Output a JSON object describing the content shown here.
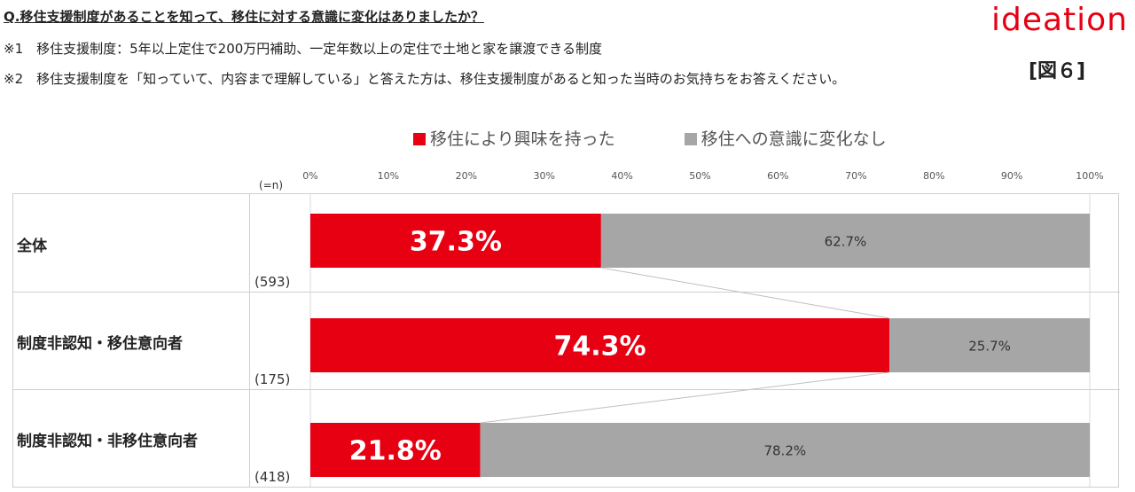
{
  "header": {
    "question": "Q.移住支援制度があることを知って、移住に対する意識に変化はありましたか？",
    "note1": "※1　移住支援制度：5年以上定住で200万円補助、一定年数以上の定住で土地と家を譲渡できる制度",
    "note2": "※2　移住支援制度を「知っていて、内容まで理解している」と答えた方は、移住支援制度があると知った当時のお気持ちをお答えください。",
    "logo": "ideation",
    "figure_label": "[図６]"
  },
  "colors": {
    "interested": "#e60012",
    "no_change": "#a6a6a6",
    "grid": "#d9d9d9",
    "connector": "#bfbfbf"
  },
  "chart_data": {
    "type": "bar",
    "orientation": "horizontal",
    "stacked": true,
    "percent_axis": true,
    "n_header": "(=n)",
    "xlim": [
      0,
      100
    ],
    "ticks": [
      "0%",
      "10%",
      "20%",
      "30%",
      "40%",
      "50%",
      "60%",
      "70%",
      "80%",
      "90%",
      "100%"
    ],
    "categories": [
      "全体",
      "制度非認知・移住意向者",
      "制度非認知・非移住意向者"
    ],
    "n_labels": [
      "(593)",
      "(175)",
      "(418)"
    ],
    "series": [
      {
        "name": "移住により興味を持った",
        "values": [
          37.3,
          74.3,
          21.8
        ],
        "labels": [
          "37.3%",
          "74.3%",
          "21.8%"
        ]
      },
      {
        "name": "移住への意識に変化なし",
        "values": [
          62.7,
          25.7,
          78.2
        ],
        "labels": [
          "62.7%",
          "25.7%",
          "78.2%"
        ]
      }
    ],
    "legend": "top-center",
    "grid": true
  }
}
